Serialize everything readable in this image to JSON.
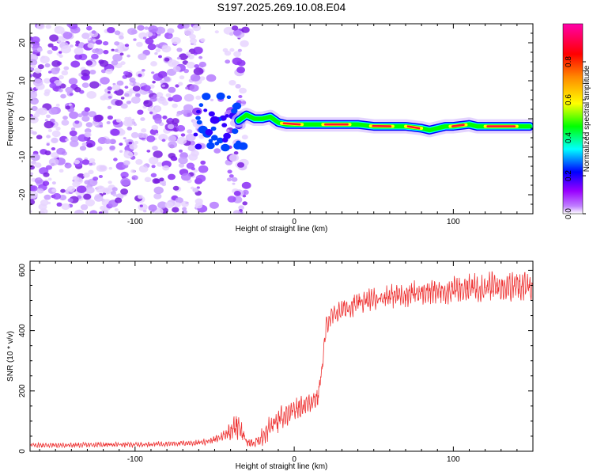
{
  "chart_data": [
    {
      "type": "heatmap",
      "title": "S197.2025.269.10.08.E04",
      "xlabel": "Height of straight line (km)",
      "ylabel": "Frequency (Hz)",
      "xlim": [
        -166,
        150
      ],
      "ylim": [
        -25,
        25
      ],
      "xticks": [
        -100,
        0,
        100
      ],
      "yticks": [
        -20,
        -10,
        0,
        10,
        20
      ],
      "colorbar": {
        "label": "Normalized spectral amplitude",
        "range": [
          0,
          1
        ],
        "ticks": [
          0.0,
          0.2,
          0.4,
          0.6,
          0.8
        ],
        "colors": [
          "#ffffff",
          "#9900ff",
          "#0000ff",
          "#00ffff",
          "#00ff00",
          "#ffff00",
          "#ff0000",
          "#ff00ff"
        ]
      },
      "noise_region_x": [
        -166,
        -30
      ],
      "noise_gap_x": [
        -57,
        -42
      ],
      "ridge": {
        "x": [
          -35,
          -30,
          -25,
          -20,
          -15,
          -10,
          -5,
          0,
          10,
          20,
          30,
          40,
          50,
          60,
          70,
          80,
          85,
          90,
          95,
          100,
          110,
          115,
          120,
          130,
          140,
          148
        ],
        "y": [
          -0.5,
          1,
          0,
          0,
          0.5,
          -1,
          -1.5,
          -1.5,
          -1.5,
          -1.5,
          -1.5,
          -1.5,
          -2,
          -2,
          -2,
          -2.5,
          -3,
          -2.5,
          -2,
          -2,
          -1.5,
          -2,
          -2,
          -2,
          -2,
          -2
        ]
      }
    },
    {
      "type": "line",
      "xlabel": "Height of straight line (km)",
      "ylabel": "SNR (10 * v/v)",
      "xlim": [
        -166,
        150
      ],
      "ylim": [
        0,
        630
      ],
      "xticks": [
        -100,
        0,
        100
      ],
      "yticks": [
        0,
        200,
        400,
        600
      ],
      "series": [
        {
          "name": "SNR",
          "color": "#ee3333",
          "x": [
            -166,
            -140,
            -120,
            -100,
            -80,
            -60,
            -50,
            -45,
            -40,
            -35,
            -30,
            -25,
            -20,
            -15,
            -10,
            -5,
            0,
            5,
            10,
            15,
            18,
            20,
            22,
            30,
            40,
            50,
            60,
            70,
            80,
            90,
            100,
            110,
            120,
            130,
            140,
            150
          ],
          "base": [
            20,
            20,
            22,
            22,
            25,
            28,
            38,
            50,
            70,
            90,
            30,
            25,
            50,
            80,
            100,
            115,
            135,
            150,
            165,
            180,
            300,
            410,
            440,
            470,
            490,
            505,
            515,
            520,
            525,
            530,
            535,
            540,
            545,
            545,
            550,
            550
          ],
          "amplitude": [
            10,
            10,
            10,
            10,
            10,
            12,
            15,
            20,
            40,
            60,
            20,
            20,
            40,
            50,
            60,
            50,
            45,
            45,
            45,
            45,
            30,
            40,
            40,
            40,
            45,
            45,
            50,
            50,
            50,
            55,
            55,
            60,
            60,
            60,
            60,
            60
          ]
        }
      ]
    }
  ]
}
